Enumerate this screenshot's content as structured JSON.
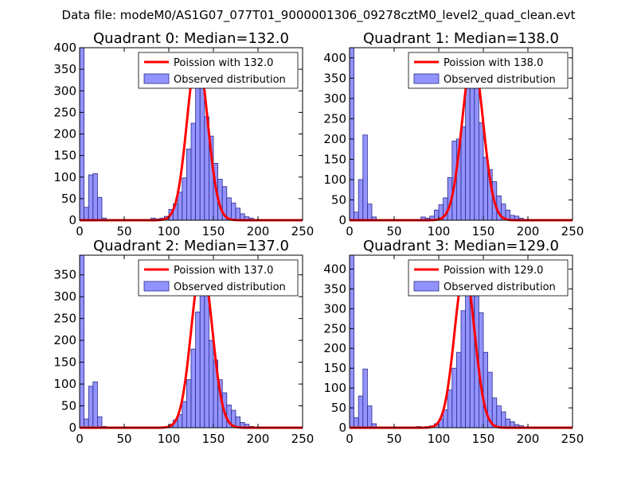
{
  "suptitle": "Data file: modeM0/AS1G07_077T01_9000001306_09278cztM0_level2_quad_clean.evt",
  "colors": {
    "bar_fill": "#8080ff",
    "bar_edge": "#2b2b8c",
    "poisson_line": "#ff0000",
    "axes": "#000000",
    "background": "#ffffff"
  },
  "legend_observed": "Observed distribution",
  "chart_data": [
    {
      "type": "bar",
      "title": "Quadrant 0: Median=132.0",
      "xlim": [
        0,
        250
      ],
      "ylim": [
        0,
        400
      ],
      "xticks": [
        0,
        50,
        100,
        150,
        200,
        250
      ],
      "yticks": [
        0,
        50,
        100,
        150,
        200,
        250,
        300,
        350,
        400
      ],
      "bin_width": 5,
      "bins": [
        0,
        5,
        10,
        15,
        20,
        25,
        30,
        35,
        40,
        45,
        50,
        55,
        60,
        65,
        70,
        75,
        80,
        85,
        90,
        95,
        100,
        105,
        110,
        115,
        120,
        125,
        130,
        135,
        140,
        145,
        150,
        155,
        160,
        165,
        170,
        175,
        180,
        185,
        190,
        195,
        200
      ],
      "counts": [
        400,
        30,
        105,
        108,
        53,
        5,
        1,
        0,
        0,
        0,
        0,
        0,
        0,
        0,
        0,
        1,
        5,
        3,
        5,
        9,
        25,
        38,
        65,
        98,
        165,
        225,
        325,
        348,
        240,
        195,
        132,
        95,
        78,
        52,
        40,
        28,
        15,
        8,
        5,
        2,
        1
      ],
      "poisson_mean": 132.0,
      "poisson_label": "Poission with 132.0",
      "poisson_peak": 384,
      "legend_loc": "upper right"
    },
    {
      "type": "bar",
      "title": "Quadrant 1: Median=138.0",
      "xlim": [
        0,
        250
      ],
      "ylim": [
        0,
        425
      ],
      "xticks": [
        0,
        50,
        100,
        150,
        200,
        250
      ],
      "yticks": [
        0,
        50,
        100,
        150,
        200,
        250,
        300,
        350,
        400
      ],
      "bin_width": 5,
      "bins": [
        0,
        5,
        10,
        15,
        20,
        25,
        30,
        35,
        40,
        45,
        50,
        55,
        60,
        65,
        70,
        75,
        80,
        85,
        90,
        95,
        100,
        105,
        110,
        115,
        120,
        125,
        130,
        135,
        140,
        145,
        150,
        155,
        160,
        165,
        170,
        175,
        180,
        185,
        190,
        195,
        200
      ],
      "counts": [
        425,
        20,
        100,
        210,
        40,
        8,
        2,
        0,
        0,
        0,
        0,
        0,
        0,
        0,
        0,
        0,
        8,
        5,
        10,
        25,
        38,
        55,
        105,
        195,
        200,
        230,
        350,
        385,
        335,
        240,
        155,
        125,
        95,
        60,
        40,
        25,
        12,
        10,
        5,
        2,
        1
      ],
      "poisson_mean": 138.0,
      "poisson_label": "Poission with 138.0",
      "poisson_peak": 402,
      "legend_loc": "upper right"
    },
    {
      "type": "bar",
      "title": "Quadrant 2: Median=137.0",
      "xlim": [
        0,
        250
      ],
      "ylim": [
        0,
        395
      ],
      "xticks": [
        0,
        50,
        100,
        150,
        200,
        250
      ],
      "yticks": [
        0,
        50,
        100,
        150,
        200,
        250,
        300,
        350
      ],
      "bin_width": 5,
      "bins": [
        0,
        5,
        10,
        15,
        20,
        25,
        30,
        35,
        40,
        45,
        50,
        55,
        60,
        65,
        70,
        75,
        80,
        85,
        90,
        95,
        100,
        105,
        110,
        115,
        120,
        125,
        130,
        135,
        140,
        145,
        150,
        155,
        160,
        165,
        170,
        175,
        180,
        185,
        190,
        195,
        200
      ],
      "counts": [
        395,
        20,
        95,
        105,
        25,
        3,
        0,
        0,
        0,
        0,
        0,
        0,
        0,
        0,
        0,
        0,
        0,
        0,
        1,
        3,
        8,
        18,
        30,
        60,
        110,
        180,
        265,
        320,
        315,
        200,
        155,
        110,
        80,
        52,
        40,
        25,
        12,
        8,
        3,
        1,
        0
      ],
      "poisson_mean": 137.0,
      "poisson_label": "Poission with 137.0",
      "poisson_peak": 376,
      "legend_loc": "upper right"
    },
    {
      "type": "bar",
      "title": "Quadrant 3: Median=129.0",
      "xlim": [
        0,
        250
      ],
      "ylim": [
        0,
        435
      ],
      "xticks": [
        0,
        50,
        100,
        150,
        200,
        250
      ],
      "yticks": [
        0,
        50,
        100,
        150,
        200,
        250,
        300,
        350,
        400
      ],
      "bin_width": 5,
      "bins": [
        0,
        5,
        10,
        15,
        20,
        25,
        30,
        35,
        40,
        45,
        50,
        55,
        60,
        65,
        70,
        75,
        80,
        85,
        90,
        95,
        100,
        105,
        110,
        115,
        120,
        125,
        130,
        135,
        140,
        145,
        150,
        155,
        160,
        165,
        170,
        175,
        180,
        185,
        190,
        195,
        200
      ],
      "counts": [
        435,
        25,
        80,
        148,
        55,
        10,
        2,
        0,
        0,
        0,
        0,
        0,
        0,
        0,
        0,
        3,
        2,
        3,
        5,
        10,
        22,
        45,
        95,
        150,
        190,
        295,
        345,
        370,
        335,
        290,
        190,
        140,
        75,
        55,
        40,
        22,
        15,
        8,
        5,
        2,
        1
      ],
      "poisson_mean": 129.0,
      "poisson_label": "Poission with 129.0",
      "poisson_peak": 395,
      "legend_loc": "upper right"
    }
  ]
}
